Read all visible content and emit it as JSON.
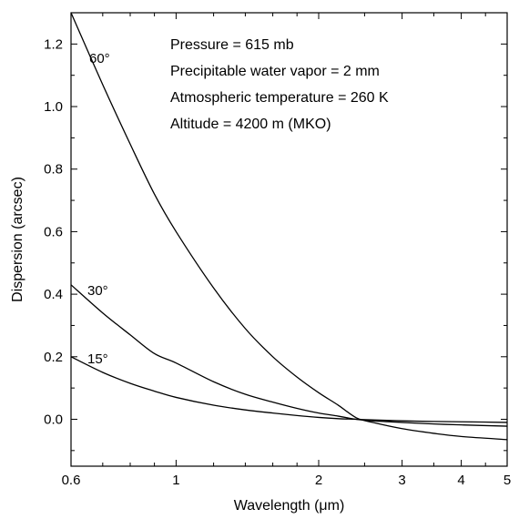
{
  "chart_data": {
    "type": "line",
    "title": "",
    "xlabel": "Wavelength (μm)",
    "ylabel": "Dispersion (arcsec)",
    "xscale": "log",
    "xlim": [
      0.6,
      5
    ],
    "ylim": [
      -0.15,
      1.3
    ],
    "grid": false,
    "xticks": [
      {
        "value": 0.6,
        "label": "0.6"
      },
      {
        "value": 1,
        "label": "1"
      },
      {
        "value": 2,
        "label": "2"
      },
      {
        "value": 3,
        "label": "3"
      },
      {
        "value": 4,
        "label": "4"
      },
      {
        "value": 5,
        "label": "5"
      }
    ],
    "yticks": [
      {
        "value": 0.0,
        "label": "0.0"
      },
      {
        "value": 0.2,
        "label": "0.2"
      },
      {
        "value": 0.4,
        "label": "0.4"
      },
      {
        "value": 0.6,
        "label": "0.6"
      },
      {
        "value": 0.8,
        "label": "0.8"
      },
      {
        "value": 1.0,
        "label": "1.0"
      },
      {
        "value": 1.2,
        "label": "1.2"
      }
    ],
    "annotations": [
      "Pressure = 615 mb",
      "Precipitable water vapor = 2 mm",
      "Atmospheric temperature = 260 K",
      "Altitude = 4200 m (MKO)"
    ],
    "series": [
      {
        "name": "60°",
        "x": [
          0.6,
          0.7,
          0.8,
          0.9,
          1.0,
          1.2,
          1.4,
          1.6,
          1.8,
          2.0,
          2.2,
          2.4,
          2.6,
          3.0,
          3.5,
          4.0,
          5.0
        ],
        "y": [
          1.3,
          1.07,
          0.88,
          0.72,
          0.6,
          0.42,
          0.29,
          0.2,
          0.135,
          0.085,
          0.045,
          0.005,
          -0.01,
          -0.03,
          -0.045,
          -0.055,
          -0.065
        ]
      },
      {
        "name": "30°",
        "x": [
          0.6,
          0.7,
          0.8,
          0.9,
          1.0,
          1.2,
          1.4,
          1.6,
          1.8,
          2.0,
          2.2,
          2.4,
          2.6,
          3.0,
          3.5,
          4.0,
          5.0
        ],
        "y": [
          0.43,
          0.34,
          0.27,
          0.21,
          0.18,
          0.12,
          0.08,
          0.055,
          0.035,
          0.02,
          0.01,
          0.0,
          -0.005,
          -0.01,
          -0.015,
          -0.018,
          -0.022
        ]
      },
      {
        "name": "15°",
        "x": [
          0.6,
          0.7,
          0.8,
          0.9,
          1.0,
          1.2,
          1.4,
          1.6,
          1.8,
          2.0,
          2.2,
          2.4,
          2.6,
          3.0,
          3.5,
          4.0,
          5.0
        ],
        "y": [
          0.2,
          0.15,
          0.115,
          0.09,
          0.07,
          0.045,
          0.03,
          0.02,
          0.012,
          0.006,
          0.002,
          0.0,
          -0.002,
          -0.005,
          -0.007,
          -0.008,
          -0.01
        ]
      }
    ]
  }
}
